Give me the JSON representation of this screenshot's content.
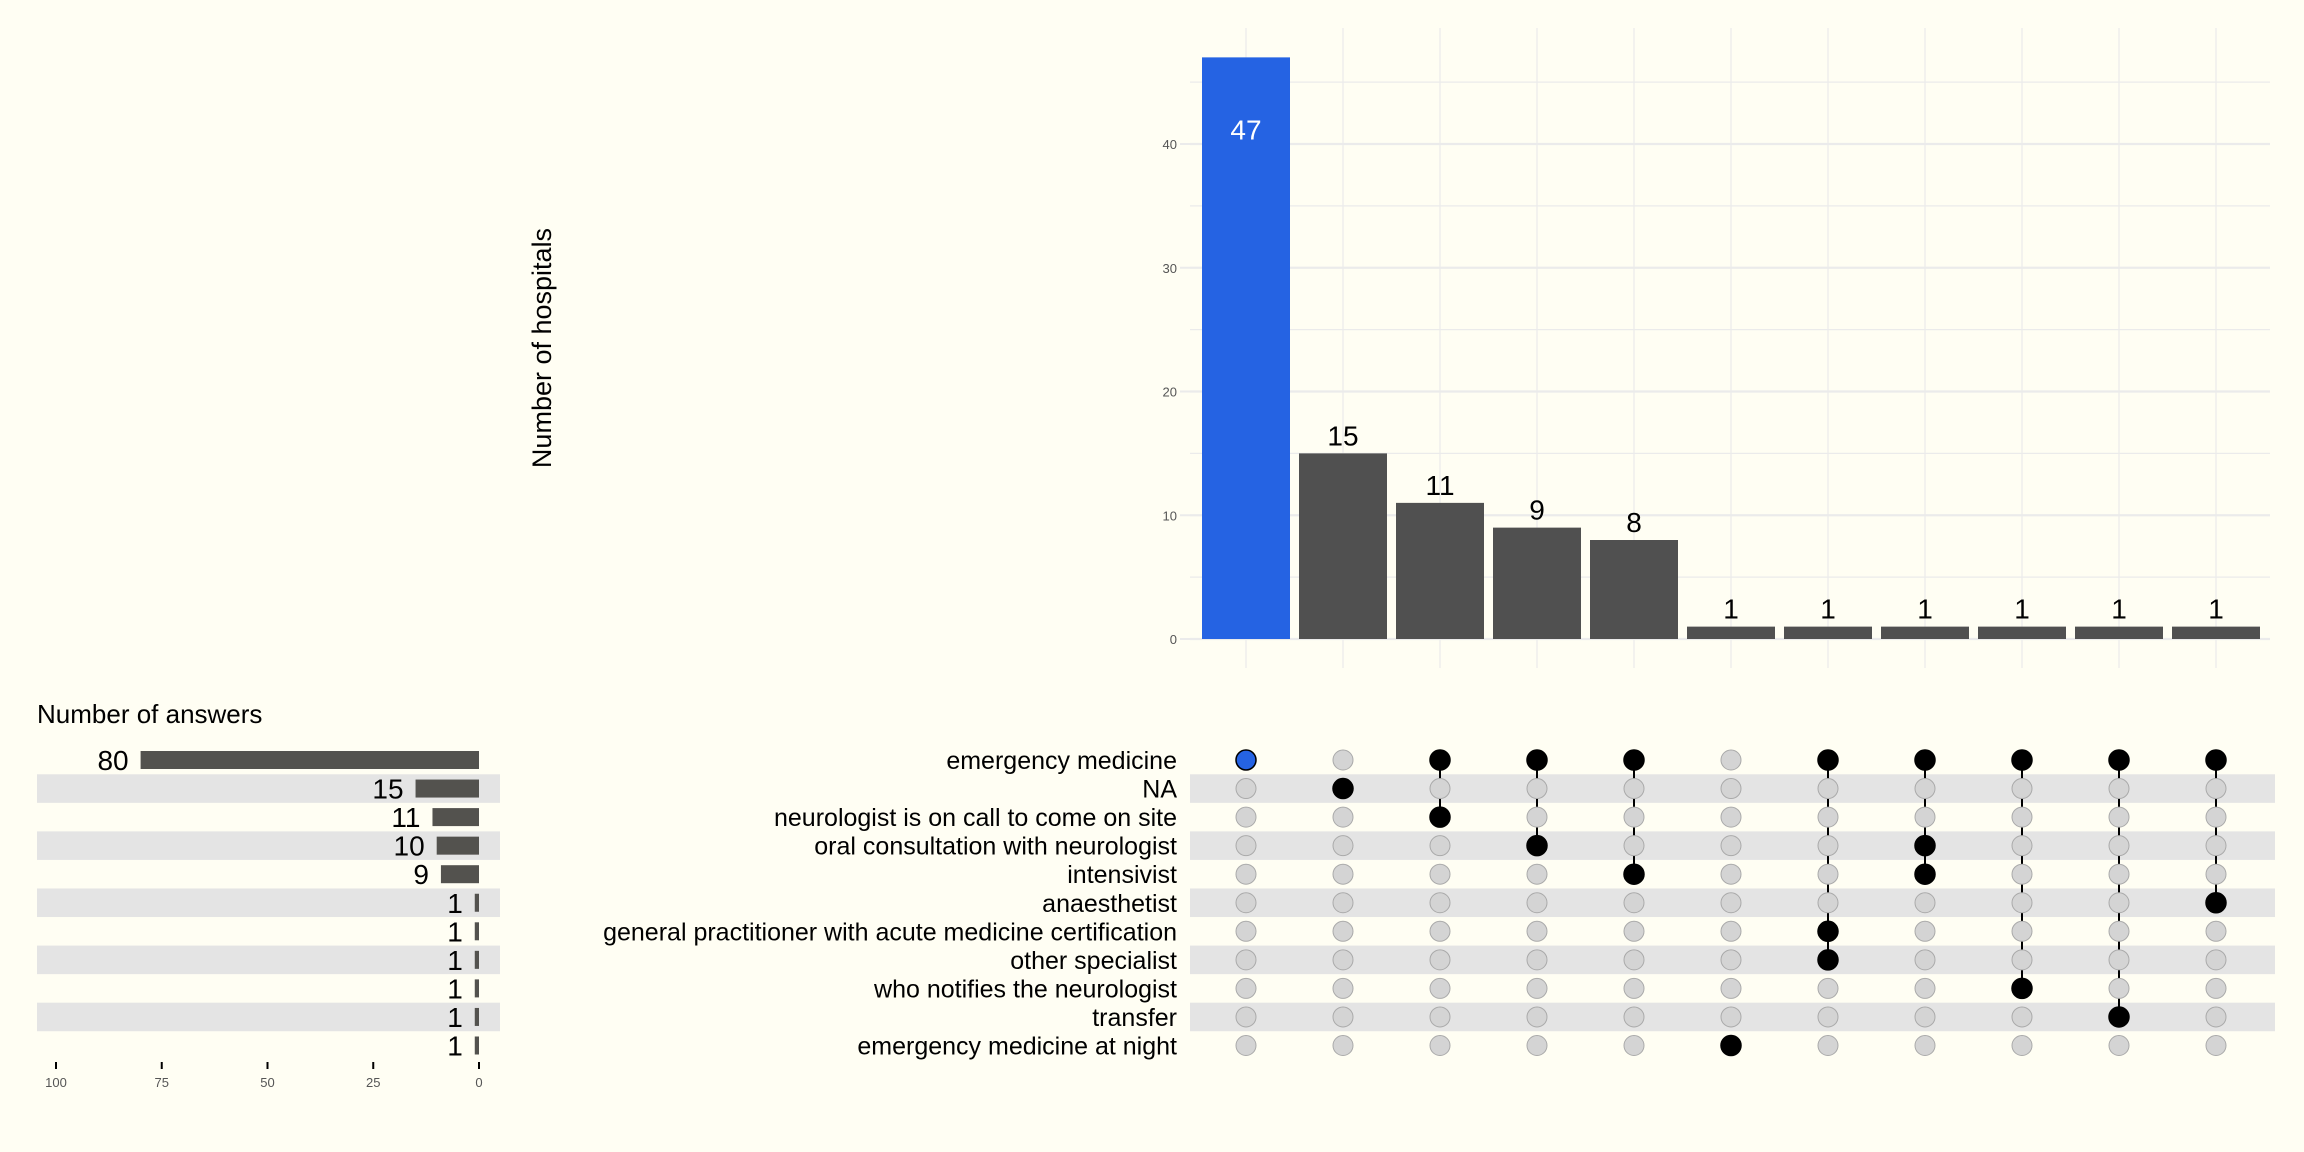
{
  "chart_data": {
    "type": "bar",
    "subtype": "upset",
    "colors": {
      "background": "#fffef3",
      "highlight": "#2563e3",
      "bar": "#505050",
      "set_bar": "#53524e",
      "stripe": "#e4e4e4",
      "grid": "#ebebeb",
      "dot_empty": "#d4d4d4",
      "dot_filled": "#000000"
    },
    "intersections": {
      "ylabel": "Number of hospitals",
      "ylim": [
        0,
        49
      ],
      "yticks": [
        0,
        10,
        20,
        30,
        40
      ],
      "values": [
        47,
        15,
        11,
        9,
        8,
        1,
        1,
        1,
        1,
        1,
        1
      ],
      "value_labels": [
        "47",
        "15",
        "11",
        "9",
        "8",
        "1",
        "1",
        "1",
        "1",
        "1",
        "1"
      ],
      "highlighted": [
        0
      ],
      "members": [
        [
          0
        ],
        [
          1
        ],
        [
          0,
          2
        ],
        [
          0,
          3
        ],
        [
          0,
          4
        ],
        [
          10
        ],
        [
          0,
          6,
          7
        ],
        [
          0,
          3,
          4
        ],
        [
          0,
          8
        ],
        [
          0,
          9
        ],
        [
          0,
          5
        ]
      ]
    },
    "sets": {
      "title": "Number of answers",
      "names": [
        "emergency medicine",
        "NA",
        "neurologist is on call to come on site",
        "oral consultation with neurologist",
        "intensivist",
        "anaesthetist",
        "general practitioner with acute medicine certification",
        "other specialist",
        "who notifies the neurologist",
        "transfer",
        "emergency medicine at night"
      ],
      "sizes": [
        80,
        15,
        11,
        10,
        9,
        1,
        1,
        1,
        1,
        1,
        1
      ],
      "size_labels": [
        "80",
        "15",
        "11",
        "10",
        "9",
        "1",
        "1",
        "1",
        "1",
        "1",
        "1"
      ],
      "xlim": [
        100,
        0
      ],
      "xticks": [
        100,
        75,
        50,
        25,
        0
      ],
      "xtick_labels": [
        "100",
        "75",
        "50",
        "25",
        "0"
      ]
    },
    "ytick_labels": [
      "0",
      "10",
      "20",
      "30",
      "40"
    ]
  }
}
